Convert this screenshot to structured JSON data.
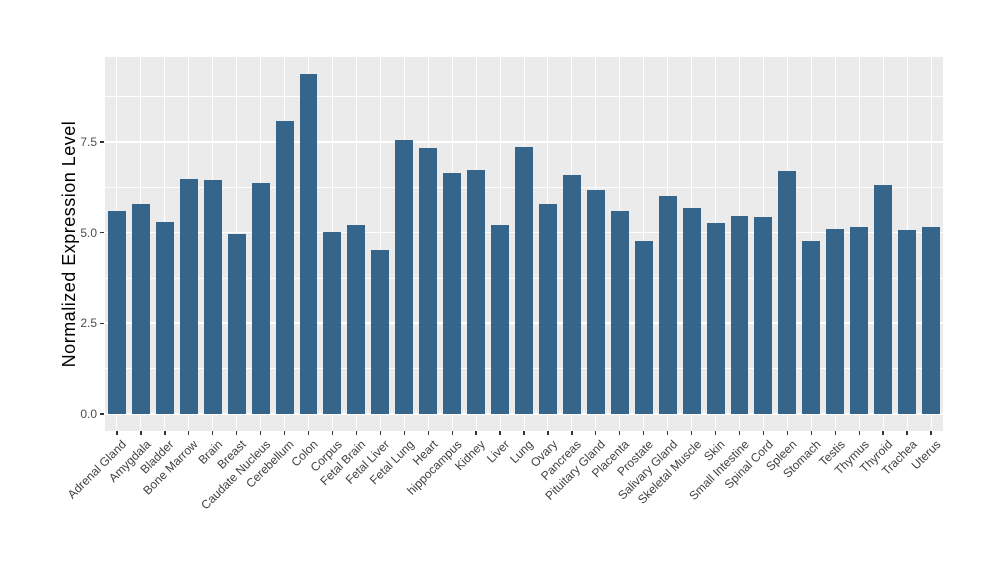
{
  "chart_data": {
    "type": "bar",
    "title": "",
    "xlabel": "",
    "ylabel": "Normalized Expression Level",
    "legend_position": "none",
    "grid": true,
    "panel_bg": "#ebebeb",
    "grid_color": "#ffffff",
    "bar_color": "#36658c",
    "axis_text_color": "#4d4d4d",
    "tick_color": "#333333",
    "ylim": [
      -0.47,
      9.84
    ],
    "y_ticks": [
      0,
      2.5,
      5,
      7.5
    ],
    "y_tick_labels": [
      "0.0",
      "2.5",
      "5.0",
      "7.5"
    ],
    "y_minor_ticks": [
      1.25,
      3.75,
      6.25,
      8.75
    ],
    "categories": [
      "Adrenal Gland",
      "Amygdala",
      "Bladder",
      "Bone Marrow",
      "Brain",
      "Breast",
      "Caudate Nucleus",
      "Cerebellum",
      "Colon",
      "Corpus",
      "Fetal Brain",
      "Fetal Liver",
      "Fetal Lung",
      "Heart",
      "hippocampus",
      "Kidney",
      "Liver",
      "Lung",
      "Ovary",
      "Pancreas",
      "Pituitary Gland",
      "Placenta",
      "Prostate",
      "Salivary Gland",
      "Skeletal Muscle",
      "Skin",
      "Small Intestine",
      "Spinal Cord",
      "Spleen",
      "Stomach",
      "Testis",
      "Thymus",
      "Thyroid",
      "Trachea",
      "Uterus"
    ],
    "values": [
      5.59,
      5.79,
      5.3,
      6.47,
      6.45,
      4.95,
      6.38,
      8.07,
      9.37,
      5.02,
      5.21,
      4.52,
      7.55,
      7.32,
      6.65,
      6.72,
      5.21,
      7.36,
      5.79,
      6.58,
      6.17,
      5.6,
      4.77,
      6.0,
      5.67,
      5.27,
      5.45,
      5.44,
      6.71,
      4.76,
      5.1,
      5.15,
      6.31,
      5.06,
      5.15
    ]
  }
}
